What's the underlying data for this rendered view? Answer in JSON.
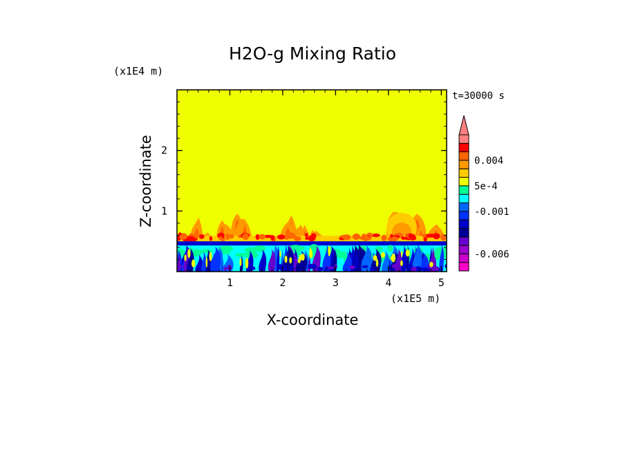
{
  "chart_data": {
    "type": "heatmap",
    "title": "H2O-g Mixing Ratio",
    "xlabel": "X-coordinate",
    "ylabel": "Z-coordinate",
    "x_unit": "(x1E5 m)",
    "y_unit": "(x1E4 m)",
    "time_label": "t=30000 s",
    "xlim": [
      0,
      5.1
    ],
    "ylim": [
      0,
      3.0
    ],
    "x_ticks": [
      1,
      2,
      3,
      4,
      5
    ],
    "y_ticks": [
      1,
      2
    ],
    "x_tick_labels": [
      "1",
      "2",
      "3",
      "4",
      "5"
    ],
    "y_tick_labels": [
      "1",
      "2"
    ],
    "background_value_color": "#f0ff00",
    "colorbar": {
      "levels": [
        -0.008,
        -0.007,
        -0.006,
        -0.005,
        -0.004,
        -0.003,
        -0.002,
        -0.001,
        -0.0005,
        0.0,
        0.0005,
        0.001,
        0.002,
        0.004,
        0.006,
        0.008
      ],
      "colors": [
        "#ff00cc",
        "#cc00cc",
        "#9900cc",
        "#6600cc",
        "#000099",
        "#0000cc",
        "#0033ff",
        "#0066ff",
        "#00ffff",
        "#00ff99",
        "#f0ff00",
        "#ffcc00",
        "#ff9900",
        "#ff6600",
        "#ff0000",
        "#ff8080"
      ],
      "labels": [
        "0.004",
        "5e-4",
        "-0.001",
        "-0.006"
      ],
      "label_values": [
        0.004,
        0.0005,
        -0.001,
        -0.006
      ],
      "extend_top": true
    },
    "plumes": [
      {
        "x": 0.35,
        "top": 0.95
      },
      {
        "x": 0.55,
        "top": 0.65
      },
      {
        "x": 0.9,
        "top": 0.9
      },
      {
        "x": 1.15,
        "top": 1.0
      },
      {
        "x": 1.3,
        "top": 0.95
      },
      {
        "x": 1.9,
        "top": 0.55
      },
      {
        "x": 2.15,
        "top": 1.0
      },
      {
        "x": 2.35,
        "top": 0.8
      },
      {
        "x": 2.6,
        "top": 0.7
      },
      {
        "x": 3.2,
        "top": 0.6
      },
      {
        "x": 3.7,
        "top": 0.6
      },
      {
        "x": 4.1,
        "top": 1.0
      },
      {
        "x": 4.3,
        "top": 0.95
      },
      {
        "x": 4.55,
        "top": 1.0
      },
      {
        "x": 4.9,
        "top": 0.8
      }
    ]
  }
}
